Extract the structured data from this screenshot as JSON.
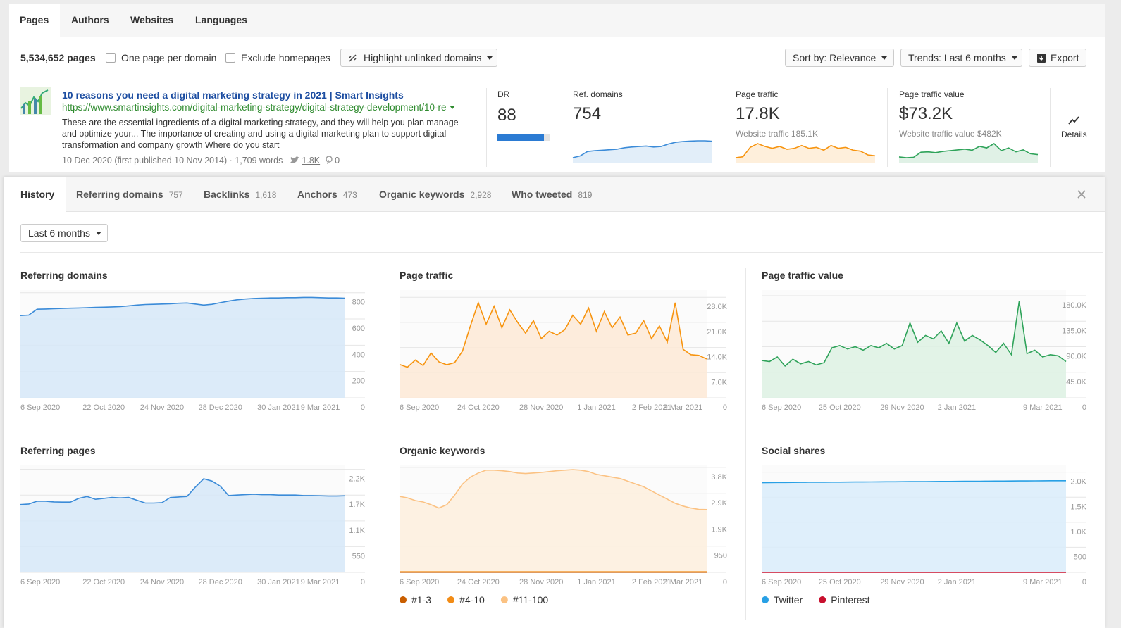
{
  "tabs": [
    "Pages",
    "Authors",
    "Websites",
    "Languages"
  ],
  "toolbar": {
    "count": "5,534,652 pages",
    "checkboxes": [
      "One page per domain",
      "Exclude homepages"
    ],
    "highlight": "Highlight unlinked domains",
    "sort": "Sort by: Relevance",
    "trends": "Trends: Last 6 months",
    "export": "Export"
  },
  "result": {
    "title": "10 reasons you need a digital marketing strategy in 2021 | Smart Insights",
    "url": "https://www.smartinsights.com/digital-marketing-strategy/digital-strategy-development/10-re",
    "description": "These are the essential ingredients of a digital marketing strategy, and they will help you plan manage and optimize your... The importance of creating and using a digital marketing plan to support digital transformation and company growth Where do you start",
    "date": "10 Dec 2020 (first published 10 Nov 2014)",
    "words": "1,709 words",
    "tweets": "1.8K",
    "pins": "0",
    "dr": {
      "label": "DR",
      "value": 88
    },
    "metrics": [
      {
        "label": "Ref. domains",
        "value": "754",
        "color": "#3b8bd8",
        "trend": [
          626,
          640,
          676,
          682,
          686,
          690,
          694,
          706,
          712,
          716,
          720,
          712,
          716,
          736,
          750,
          756,
          760,
          762,
          762,
          758
        ]
      },
      {
        "label": "Page traffic",
        "value": "17.8K",
        "sub": "Website traffic 185.1K",
        "color": "#f7940f",
        "trend": [
          9000,
          10000,
          20000,
          24000,
          21000,
          19000,
          21000,
          18000,
          19000,
          22000,
          19000,
          20000,
          17000,
          22000,
          19000,
          20000,
          17000,
          16000,
          12000,
          11000
        ]
      },
      {
        "label": "Page traffic value",
        "value": "$73.2K",
        "sub": "Website traffic value $482K",
        "color": "#2fa35a",
        "trend": [
          64000,
          60000,
          62000,
          88000,
          90000,
          86000,
          92000,
          96000,
          100000,
          104000,
          98000,
          118000,
          110000,
          132000,
          96000,
          110000,
          90000,
          100000,
          80000,
          76000
        ]
      }
    ],
    "details": "Details"
  },
  "detail_tabs": [
    {
      "label": "History"
    },
    {
      "label": "Referring domains",
      "count": "757"
    },
    {
      "label": "Backlinks",
      "count": "1,618"
    },
    {
      "label": "Anchors",
      "count": "473"
    },
    {
      "label": "Organic keywords",
      "count": "2,928"
    },
    {
      "label": "Who tweeted",
      "count": "819"
    }
  ],
  "period": "Last 6 months",
  "chart_data": [
    {
      "type": "area",
      "title": "Referring domains",
      "grid": true,
      "color": "#3b8bd8",
      "fill": "#d6e7f8",
      "categories": [
        "6 Sep 2020",
        null,
        null,
        null,
        null,
        null,
        null,
        null,
        null,
        null,
        "22 Oct 2020",
        null,
        null,
        null,
        null,
        null,
        null,
        "24 Nov 2020",
        null,
        null,
        null,
        null,
        null,
        null,
        "28 Dec 2020",
        null,
        null,
        null,
        null,
        null,
        null,
        "30 Jan 2021",
        null,
        null,
        null,
        null,
        "9 Mar 2021",
        null,
        null,
        null
      ],
      "values": [
        626,
        630,
        674,
        676,
        678,
        680,
        682,
        684,
        686,
        688,
        690,
        692,
        694,
        700,
        706,
        710,
        712,
        714,
        716,
        720,
        722,
        714,
        706,
        712,
        724,
        736,
        746,
        752,
        756,
        758,
        760,
        760,
        762,
        762,
        764,
        764,
        762,
        760,
        760,
        758
      ],
      "ylim": [
        0,
        820
      ],
      "yticks": [
        0,
        200,
        400,
        600,
        800
      ]
    },
    {
      "type": "area",
      "title": "Page traffic",
      "grid": true,
      "color": "#f7940f",
      "fill": "#fde9d6",
      "categories": [
        "6 Sep 2020",
        null,
        null,
        null,
        null,
        null,
        null,
        null,
        null,
        null,
        "24 Oct 2020",
        null,
        null,
        null,
        null,
        null,
        null,
        null,
        "28 Nov 2020",
        null,
        null,
        null,
        null,
        null,
        null,
        "1 Jan 2021",
        null,
        null,
        null,
        null,
        null,
        null,
        "2 Feb 2021",
        null,
        null,
        null,
        "9 Mar 2021",
        null,
        null,
        null
      ],
      "values": [
        9300,
        8500,
        10500,
        9000,
        12500,
        10000,
        9200,
        9800,
        13000,
        20000,
        26500,
        20500,
        25500,
        19500,
        24500,
        21000,
        18000,
        21500,
        16500,
        18500,
        17500,
        19000,
        23000,
        20500,
        25000,
        18500,
        24000,
        19500,
        22500,
        17500,
        18000,
        21500,
        16500,
        20000,
        15500,
        26500,
        13500,
        12000,
        11800,
        10800
      ],
      "ylim": [
        0,
        30000
      ],
      "yticks": [
        0,
        {
          "value": 7000,
          "label": "7.0K"
        },
        {
          "value": 14000,
          "label": "14.0K"
        },
        {
          "value": 21000,
          "label": "21.0K"
        },
        {
          "value": 28000,
          "label": "28.0K"
        }
      ]
    },
    {
      "type": "area",
      "title": "Page traffic value",
      "grid": true,
      "color": "#2fa35a",
      "fill": "#ddf1e3",
      "categories": [
        "6 Sep 2020",
        null,
        null,
        null,
        null,
        null,
        null,
        null,
        null,
        null,
        "25 Oct 2020",
        null,
        null,
        null,
        null,
        null,
        null,
        null,
        "29 Nov 2020",
        null,
        null,
        null,
        null,
        null,
        null,
        "2 Jan 2021",
        null,
        null,
        null,
        null,
        null,
        null,
        null,
        null,
        null,
        null,
        "9 Mar 2021",
        null,
        null,
        null
      ],
      "values": [
        66000,
        64000,
        72000,
        56000,
        68000,
        60000,
        64000,
        58000,
        62000,
        88000,
        92000,
        86000,
        90000,
        84000,
        92000,
        88000,
        96000,
        86000,
        92000,
        132000,
        98000,
        110000,
        104000,
        118000,
        96000,
        132000,
        100000,
        110000,
        102000,
        92000,
        80000,
        96000,
        76000,
        170000,
        78000,
        84000,
        72000,
        76000,
        74000,
        64000
      ],
      "ylim": [
        0,
        190000
      ],
      "yticks": [
        0,
        {
          "value": 45000,
          "label": "45.0K"
        },
        {
          "value": 90000,
          "label": "90.0K"
        },
        {
          "value": 135000,
          "label": "135.0K"
        },
        {
          "value": 180000,
          "label": "180.0K"
        }
      ]
    },
    {
      "type": "area",
      "title": "Referring pages",
      "grid": true,
      "color": "#3b8bd8",
      "fill": "#d6e7f8",
      "categories": [
        "6 Sep 2020",
        null,
        null,
        null,
        null,
        null,
        null,
        null,
        null,
        null,
        "22 Oct 2020",
        null,
        null,
        null,
        null,
        null,
        null,
        "24 Nov 2020",
        null,
        null,
        null,
        null,
        null,
        null,
        "28 Dec 2020",
        null,
        null,
        null,
        null,
        null,
        null,
        "30 Jan 2021",
        null,
        null,
        null,
        null,
        "9 Mar 2021",
        null,
        null,
        null
      ],
      "values": [
        1447,
        1460,
        1520,
        1520,
        1505,
        1500,
        1500,
        1580,
        1620,
        1560,
        1580,
        1600,
        1590,
        1600,
        1540,
        1480,
        1480,
        1490,
        1600,
        1610,
        1620,
        1820,
        2000,
        1950,
        1840,
        1640,
        1650,
        1660,
        1670,
        1660,
        1660,
        1650,
        1650,
        1650,
        1640,
        1640,
        1635,
        1630,
        1630,
        1635
      ],
      "ylim": [
        0,
        2300
      ],
      "yticks": [
        0,
        550,
        {
          "value": 1100,
          "label": "1.1K"
        },
        {
          "value": 1650,
          "label": "1.7K"
        },
        {
          "value": 2200,
          "label": "2.2K"
        }
      ]
    },
    {
      "type": "area",
      "title": "Organic keywords",
      "grid": true,
      "legend": "bottom-left",
      "categories": [
        "6 Sep 2020",
        null,
        null,
        null,
        null,
        null,
        null,
        null,
        null,
        null,
        "24 Oct 2020",
        null,
        null,
        null,
        null,
        null,
        null,
        null,
        "28 Nov 2020",
        null,
        null,
        null,
        null,
        null,
        null,
        "1 Jan 2021",
        null,
        null,
        null,
        null,
        null,
        null,
        "2 Feb 2021",
        null,
        null,
        null,
        "9 Mar 2021",
        null,
        null,
        null
      ],
      "series": [
        {
          "name": "#1-3",
          "color": "#c95e00",
          "values": [
            5,
            5,
            5,
            5,
            5,
            5,
            5,
            5,
            5,
            5,
            5,
            5,
            5,
            5,
            5,
            5,
            5,
            5,
            5,
            5,
            5,
            5,
            5,
            5,
            5,
            5,
            5,
            5,
            5,
            5,
            5,
            5,
            5,
            5,
            5,
            5,
            5,
            5,
            5,
            5
          ]
        },
        {
          "name": "#4-10",
          "color": "#f28c16",
          "values": [
            20,
            20,
            20,
            20,
            20,
            20,
            20,
            20,
            20,
            20,
            20,
            20,
            20,
            20,
            20,
            20,
            20,
            20,
            20,
            20,
            20,
            20,
            20,
            20,
            20,
            20,
            20,
            20,
            20,
            20,
            20,
            20,
            20,
            20,
            20,
            20,
            20,
            20,
            20,
            20
          ]
        },
        {
          "name": "#11-100",
          "color": "#fbc283",
          "fill": "#fdeedd",
          "values": [
            2750,
            2700,
            2600,
            2550,
            2450,
            2330,
            2450,
            2800,
            3200,
            3450,
            3600,
            3700,
            3700,
            3680,
            3650,
            3600,
            3580,
            3600,
            3620,
            3650,
            3680,
            3700,
            3720,
            3700,
            3650,
            3550,
            3500,
            3450,
            3400,
            3300,
            3200,
            3100,
            2950,
            2800,
            2650,
            2500,
            2400,
            2330,
            2280,
            2275
          ]
        }
      ],
      "ylim": [
        0,
        3900
      ],
      "yticks": [
        0,
        950,
        {
          "value": 1900,
          "label": "1.9K"
        },
        {
          "value": 2850,
          "label": "2.9K"
        },
        {
          "value": 3800,
          "label": "3.8K"
        }
      ]
    },
    {
      "type": "area",
      "title": "Social shares",
      "grid": true,
      "legend": "bottom-left",
      "categories": [
        "6 Sep 2020",
        null,
        null,
        null,
        null,
        null,
        null,
        null,
        null,
        null,
        "25 Oct 2020",
        null,
        null,
        null,
        null,
        null,
        null,
        null,
        "29 Nov 2020",
        null,
        null,
        null,
        null,
        null,
        null,
        "2 Jan 2021",
        null,
        null,
        null,
        null,
        null,
        null,
        null,
        null,
        null,
        null,
        "9 Mar 2021",
        null,
        null,
        null
      ],
      "series": [
        {
          "name": "Twitter",
          "color": "#28a0e5",
          "fill": "#d9ecfa",
          "values": [
            1790,
            1792,
            1794,
            1795,
            1796,
            1797,
            1798,
            1799,
            1800,
            1801,
            1802,
            1803,
            1804,
            1805,
            1806,
            1807,
            1808,
            1809,
            1810,
            1811,
            1812,
            1813,
            1814,
            1815,
            1816,
            1817,
            1818,
            1819,
            1820,
            1821,
            1822,
            1823,
            1824,
            1825,
            1826,
            1827,
            1828,
            1829,
            1830,
            1830
          ]
        },
        {
          "name": "Pinterest",
          "color": "#c8102e",
          "values": [
            0,
            0,
            0,
            0,
            0,
            0,
            0,
            0,
            0,
            0,
            0,
            0,
            0,
            0,
            0,
            0,
            0,
            0,
            0,
            0,
            0,
            0,
            0,
            0,
            0,
            0,
            0,
            0,
            0,
            0,
            0,
            0,
            0,
            0,
            0,
            0,
            0,
            0,
            0,
            0
          ]
        }
      ],
      "ylim": [
        0,
        2150
      ],
      "yticks": [
        0,
        500,
        {
          "value": 1000,
          "label": "1.0K"
        },
        {
          "value": 1500,
          "label": "1.5K"
        },
        {
          "value": 2000,
          "label": "2.0K"
        }
      ]
    }
  ]
}
